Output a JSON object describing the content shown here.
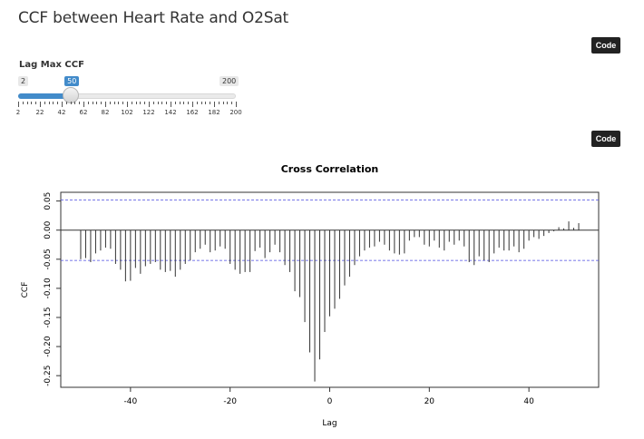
{
  "page": {
    "title": "CCF between Heart Rate and O2Sat"
  },
  "buttons": {
    "code_label_1": "Code",
    "code_label_2": "Code"
  },
  "slider": {
    "label": "Lag Max CCF",
    "min": 2,
    "max": 200,
    "value": 50,
    "min_label": "2",
    "max_label": "200",
    "value_label": "50",
    "tick_labels": [
      "2",
      "22",
      "42",
      "62",
      "82",
      "102",
      "122",
      "142",
      "162",
      "182",
      "200"
    ],
    "accent_color": "#428bca"
  },
  "chart_data": {
    "type": "bar",
    "title": "Cross Correlation",
    "xlabel": "Lag",
    "ylabel": "CCF",
    "xlim": [
      -54,
      54
    ],
    "ylim": [
      -0.27,
      0.065
    ],
    "x_ticks": [
      -40,
      -20,
      0,
      20,
      40
    ],
    "x_tick_labels": [
      "-40",
      "-20",
      "0",
      "20",
      "40"
    ],
    "y_ticks": [
      0.05,
      0.0,
      -0.05,
      -0.1,
      -0.15,
      -0.2,
      -0.25
    ],
    "y_tick_labels": [
      "0.05",
      "0.00",
      "-0.05",
      "-0.10",
      "-0.15",
      "-0.20",
      "-0.25"
    ],
    "confidence_band": [
      0.052,
      -0.052
    ],
    "band_color": "#4a4ae0",
    "x": [
      -50,
      -49,
      -48,
      -47,
      -46,
      -45,
      -44,
      -43,
      -42,
      -41,
      -40,
      -39,
      -38,
      -37,
      -36,
      -35,
      -34,
      -33,
      -32,
      -31,
      -30,
      -29,
      -28,
      -27,
      -26,
      -25,
      -24,
      -23,
      -22,
      -21,
      -20,
      -19,
      -18,
      -17,
      -16,
      -15,
      -14,
      -13,
      -12,
      -11,
      -10,
      -9,
      -8,
      -7,
      -6,
      -5,
      -4,
      -3,
      -2,
      -1,
      0,
      1,
      2,
      3,
      4,
      5,
      6,
      7,
      8,
      9,
      10,
      11,
      12,
      13,
      14,
      15,
      16,
      17,
      18,
      19,
      20,
      21,
      22,
      23,
      24,
      25,
      26,
      27,
      28,
      29,
      30,
      31,
      32,
      33,
      34,
      35,
      36,
      37,
      38,
      39,
      40,
      41,
      42,
      43,
      44,
      45,
      46,
      47,
      48,
      49,
      50
    ],
    "values": [
      -0.05,
      -0.048,
      -0.055,
      -0.04,
      -0.035,
      -0.03,
      -0.032,
      -0.058,
      -0.068,
      -0.088,
      -0.087,
      -0.065,
      -0.075,
      -0.062,
      -0.058,
      -0.055,
      -0.068,
      -0.072,
      -0.07,
      -0.08,
      -0.068,
      -0.058,
      -0.052,
      -0.038,
      -0.032,
      -0.025,
      -0.038,
      -0.035,
      -0.028,
      -0.032,
      -0.058,
      -0.068,
      -0.075,
      -0.072,
      -0.072,
      -0.036,
      -0.03,
      -0.048,
      -0.038,
      -0.025,
      -0.038,
      -0.06,
      -0.072,
      -0.105,
      -0.115,
      -0.158,
      -0.21,
      -0.26,
      -0.222,
      -0.175,
      -0.148,
      -0.135,
      -0.118,
      -0.095,
      -0.08,
      -0.06,
      -0.045,
      -0.035,
      -0.03,
      -0.028,
      -0.02,
      -0.025,
      -0.035,
      -0.04,
      -0.042,
      -0.04,
      -0.018,
      -0.012,
      -0.012,
      -0.025,
      -0.028,
      -0.018,
      -0.03,
      -0.035,
      -0.02,
      -0.025,
      -0.018,
      -0.028,
      -0.055,
      -0.06,
      -0.045,
      -0.052,
      -0.055,
      -0.04,
      -0.03,
      -0.035,
      -0.035,
      -0.028,
      -0.038,
      -0.032,
      -0.018,
      -0.012,
      -0.015,
      -0.01,
      -0.005,
      -0.002,
      0.005,
      0.003,
      0.015,
      0.004,
      0.012
    ]
  }
}
